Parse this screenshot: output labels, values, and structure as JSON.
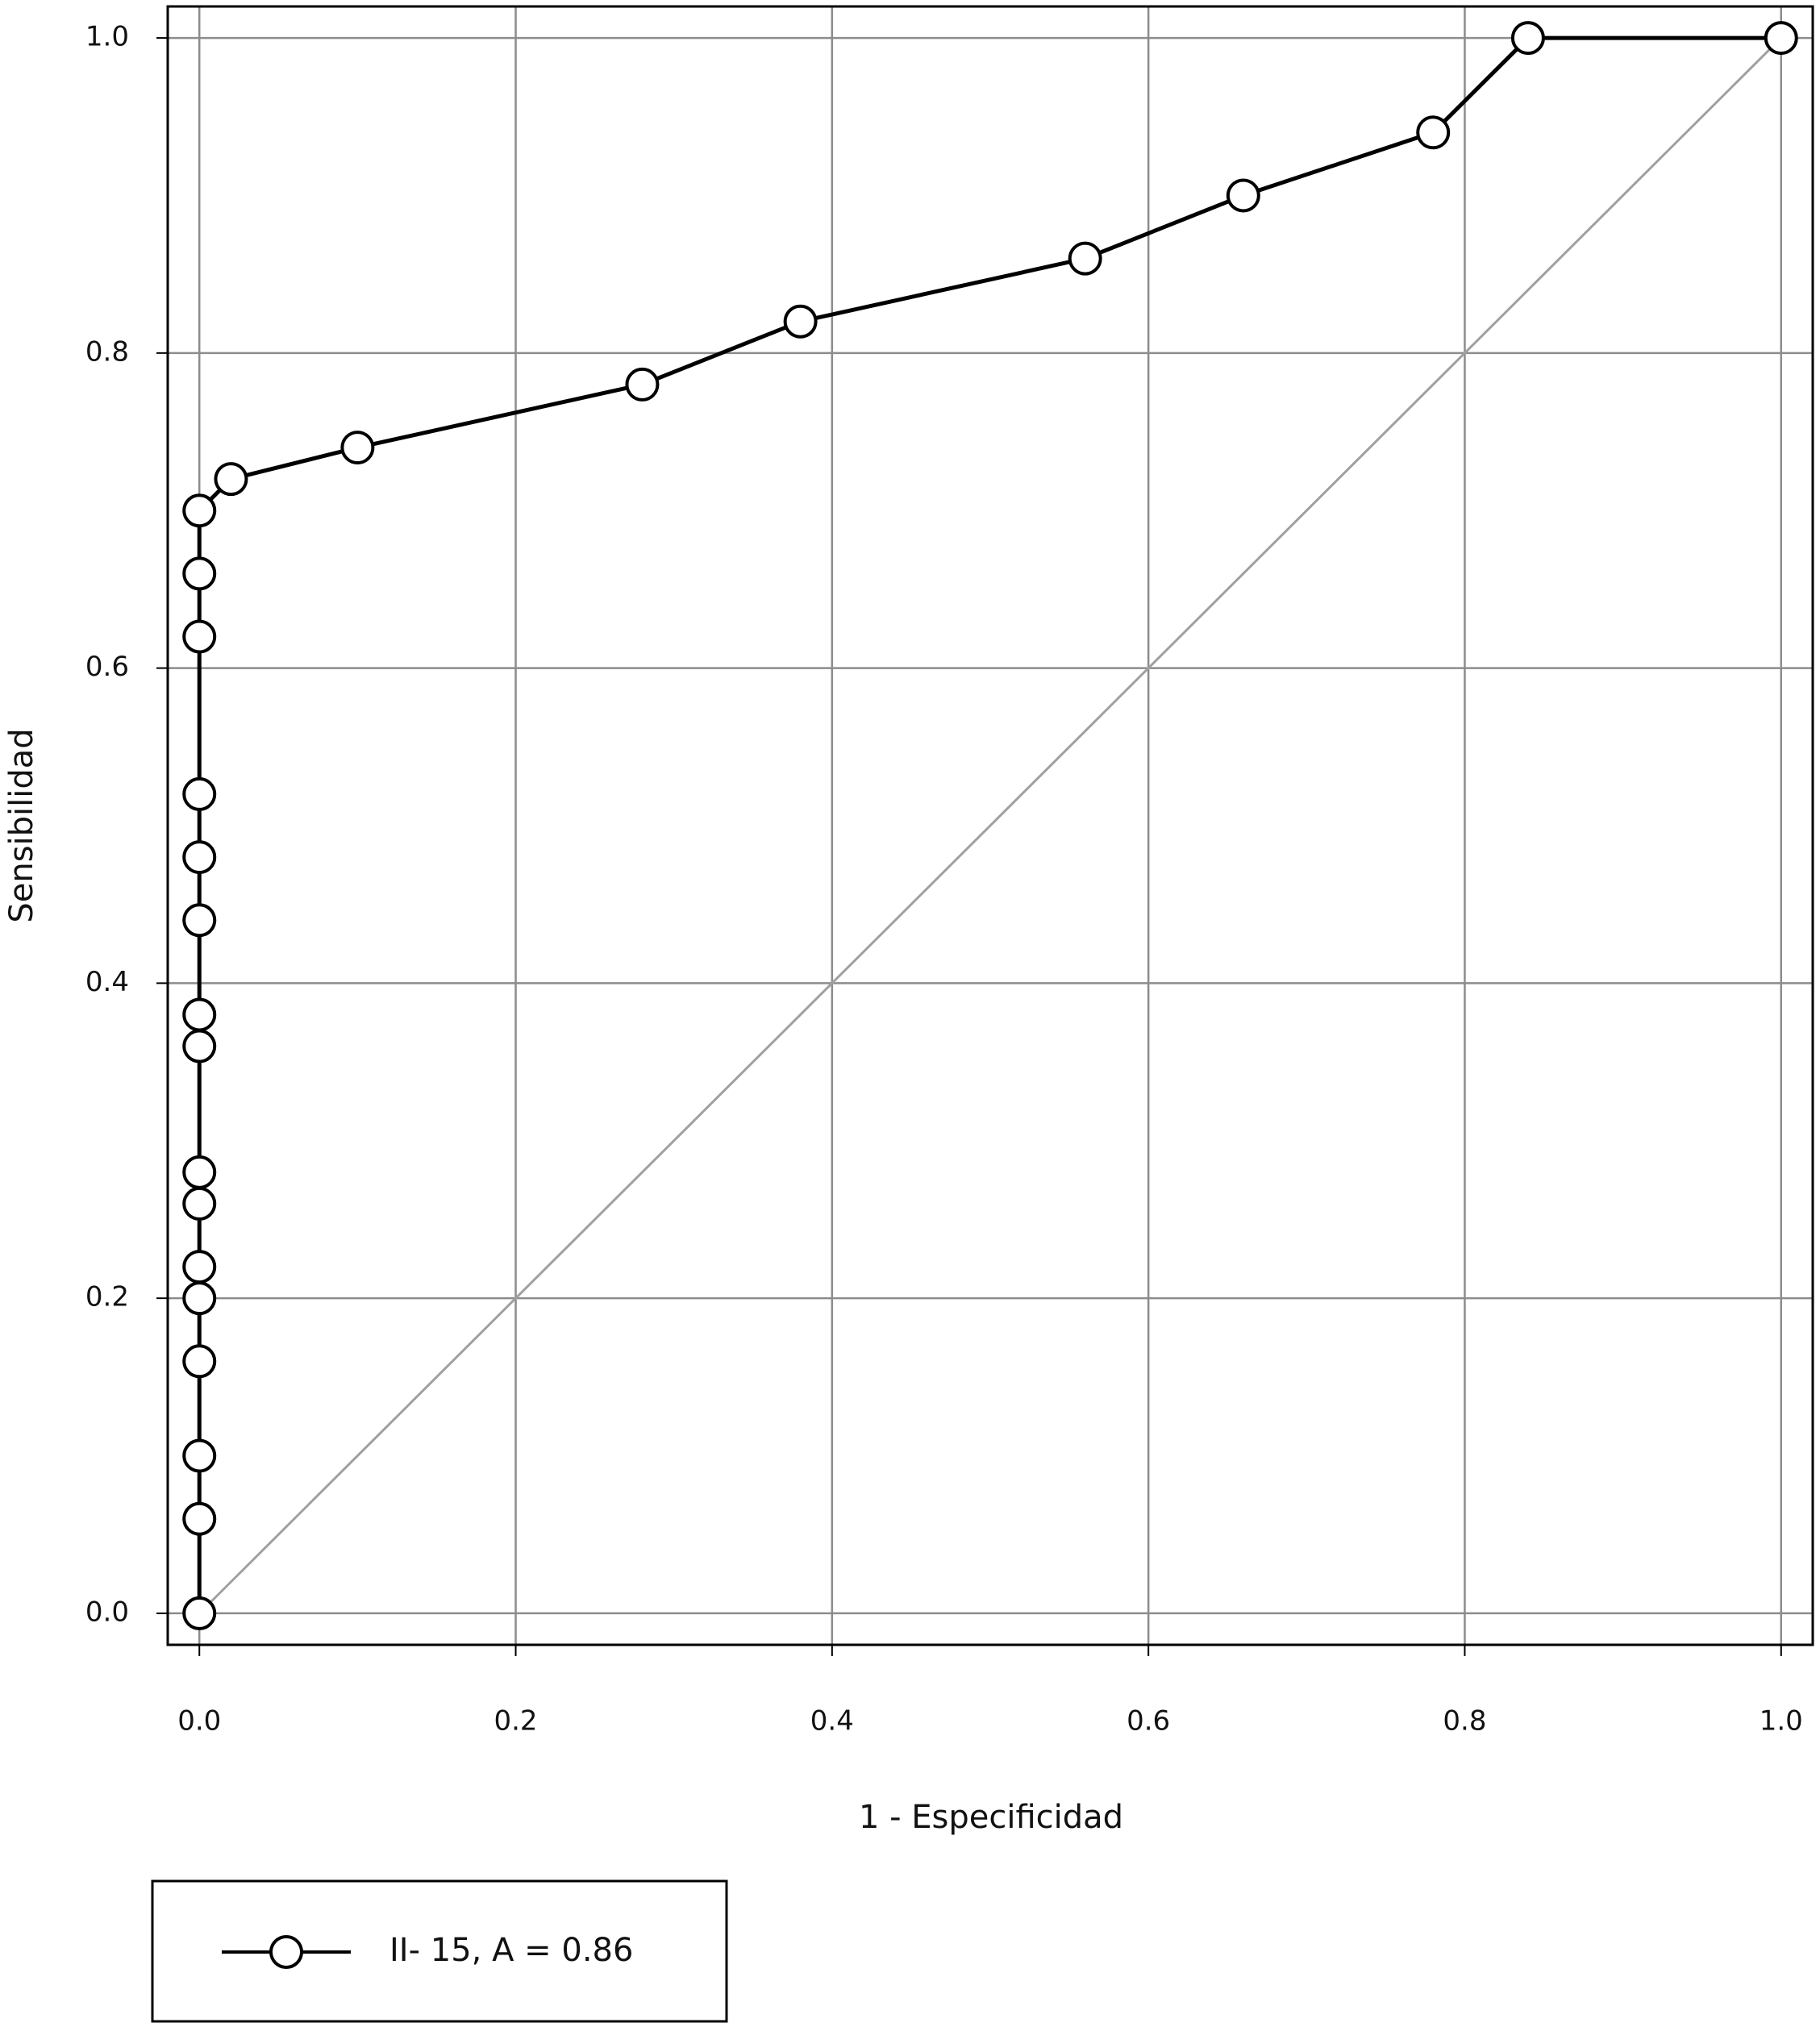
{
  "chart_data": {
    "type": "line",
    "xlabel": "1 - Especificidad",
    "ylabel": "Sensibilidad",
    "x": [
      0,
      0,
      0,
      0,
      0,
      0,
      0,
      0,
      0,
      0,
      0,
      0,
      0,
      0,
      0,
      0,
      0.02,
      0.1,
      0.28,
      0.38,
      0.56,
      0.66,
      0.78,
      0.84,
      1.0
    ],
    "series": [
      {
        "name": "II- 15, A = 0.86",
        "color": "#000000",
        "values": [
          0,
          0.06,
          0.1,
          0.16,
          0.2,
          0.22,
          0.26,
          0.28,
          0.36,
          0.38,
          0.44,
          0.48,
          0.52,
          0.62,
          0.66,
          0.7,
          0.72,
          0.74,
          0.78,
          0.82,
          0.86,
          0.9,
          0.94,
          1.0,
          1.0
        ]
      }
    ],
    "xlim": [
      -0.02,
      1.02
    ],
    "ylim": [
      -0.02,
      1.02
    ],
    "xticks": [
      {
        "value": 0,
        "label": "0.0"
      },
      0.2,
      0.4,
      0.6,
      0.8,
      {
        "value": 1,
        "label": "1.0"
      }
    ],
    "yticks": [
      {
        "value": 0,
        "label": "0.0"
      },
      0.2,
      0.4,
      0.6,
      0.8,
      {
        "value": 1,
        "label": "1.0"
      }
    ],
    "grid": true,
    "reference_color": "#a0a0a0",
    "grid_color": "#8c8c8c"
  }
}
